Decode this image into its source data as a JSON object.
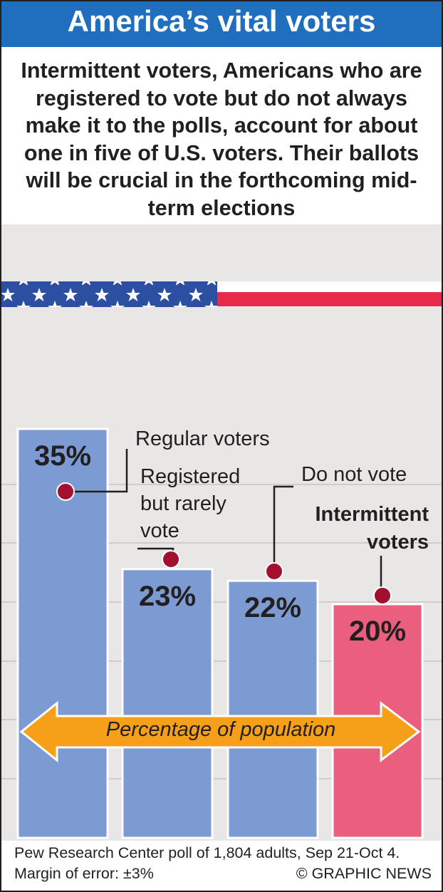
{
  "chart_data": {
    "type": "bar",
    "title": "America’s vital voters",
    "subtitle": "Intermittent voters, Americans who are registered to vote but do not always make it to the polls, account for about one in five of U.S. voters. Their ballots will be crucial in the forthcoming mid-term elections",
    "categories": [
      "Regular voters",
      "Registered but rarely vote",
      "Do not vote",
      "Intermittent voters"
    ],
    "values": [
      35,
      23,
      22,
      20
    ],
    "value_labels": [
      "35%",
      "23%",
      "22%",
      "20%"
    ],
    "colors": [
      "#7b9bd2",
      "#7b9bd2",
      "#7b9bd2",
      "#ea5f7e"
    ],
    "annotation": "Percentage of population",
    "source": "Pew Research Center poll of 1,804 adults, Sep 21-Oct 4. Margin of error: ±3%",
    "credit": "© GRAPHIC NEWS"
  }
}
